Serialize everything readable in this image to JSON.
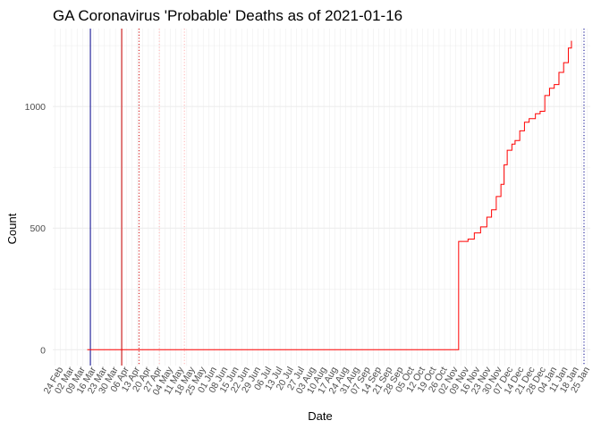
{
  "chart_data": {
    "type": "line",
    "title": "GA Coronavirus 'Probable' Deaths as of 2021-01-16",
    "xlabel": "Date",
    "ylabel": "Count",
    "x_range": [
      "2020-02-19",
      "2021-01-27"
    ],
    "ylim": [
      -65,
      1320
    ],
    "y_ticks": [
      0,
      500,
      1000
    ],
    "x_ticks": [
      "24 Feb",
      "02 Mar",
      "09 Mar",
      "16 Mar",
      "23 Mar",
      "30 Mar",
      "06 Apr",
      "13 Apr",
      "20 Apr",
      "27 Apr",
      "04 May",
      "11 May",
      "18 May",
      "25 May",
      "01 Jun",
      "08 Jun",
      "15 Jun",
      "22 Jun",
      "29 Jun",
      "06 Jul",
      "13 Jul",
      "20 Jul",
      "27 Jul",
      "03 Aug",
      "10 Aug",
      "17 Aug",
      "24 Aug",
      "31 Aug",
      "07 Sep",
      "14 Sep",
      "21 Sep",
      "28 Sep",
      "05 Oct",
      "12 Oct",
      "19 Oct",
      "26 Oct",
      "02 Nov",
      "09 Nov",
      "16 Nov",
      "23 Nov",
      "30 Nov",
      "07 Dec",
      "14 Dec",
      "21 Dec",
      "28 Dec",
      "04 Jan",
      "11 Jan",
      "18 Jan",
      "25 Jan"
    ],
    "x_tick_dates": [
      "2020-02-24",
      "2020-03-02",
      "2020-03-09",
      "2020-03-16",
      "2020-03-23",
      "2020-03-30",
      "2020-04-06",
      "2020-04-13",
      "2020-04-20",
      "2020-04-27",
      "2020-05-04",
      "2020-05-11",
      "2020-05-18",
      "2020-05-25",
      "2020-06-01",
      "2020-06-08",
      "2020-06-15",
      "2020-06-22",
      "2020-06-29",
      "2020-07-06",
      "2020-07-13",
      "2020-07-20",
      "2020-07-27",
      "2020-08-03",
      "2020-08-10",
      "2020-08-17",
      "2020-08-24",
      "2020-08-31",
      "2020-09-07",
      "2020-09-14",
      "2020-09-21",
      "2020-09-28",
      "2020-10-05",
      "2020-10-12",
      "2020-10-19",
      "2020-10-26",
      "2020-11-02",
      "2020-11-09",
      "2020-11-16",
      "2020-11-23",
      "2020-11-30",
      "2020-12-07",
      "2020-12-14",
      "2020-12-21",
      "2020-12-28",
      "2021-01-04",
      "2021-01-11",
      "2021-01-18",
      "2021-01-25"
    ],
    "grid": true,
    "series": [
      {
        "color": "#ff0000",
        "x": [
          "2020-03-12",
          "2020-11-03",
          "2020-11-04",
          "2020-11-10",
          "2020-11-14",
          "2020-11-18",
          "2020-11-22",
          "2020-11-25",
          "2020-11-28",
          "2020-12-01",
          "2020-12-03",
          "2020-12-05",
          "2020-12-08",
          "2020-12-10",
          "2020-12-13",
          "2020-12-16",
          "2020-12-19",
          "2020-12-23",
          "2020-12-26",
          "2020-12-29",
          "2021-01-01",
          "2021-01-04",
          "2021-01-07",
          "2021-01-10",
          "2021-01-13",
          "2021-01-15"
        ],
        "y": [
          0,
          0,
          445,
          455,
          480,
          505,
          545,
          575,
          630,
          680,
          760,
          820,
          845,
          860,
          900,
          935,
          950,
          970,
          980,
          1045,
          1075,
          1090,
          1140,
          1180,
          1240,
          1270
        ]
      }
    ],
    "reference_lines": [
      {
        "x": "2020-03-14",
        "color": "#00008b",
        "style": "solid"
      },
      {
        "x": "2020-04-03",
        "color": "#cc0000",
        "style": "solid"
      },
      {
        "x": "2020-04-14",
        "color": "#cc0000",
        "style": "dotted"
      },
      {
        "x": "2020-04-27",
        "color": "#ffb0b0",
        "style": "dotted"
      },
      {
        "x": "2020-05-13",
        "color": "#ffb0b0",
        "style": "dotted"
      },
      {
        "x": "2021-01-23",
        "color": "#00008b",
        "style": "dotted"
      }
    ]
  }
}
